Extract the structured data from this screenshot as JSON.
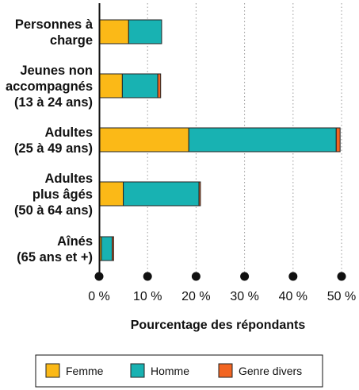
{
  "chart_data": {
    "type": "bar",
    "orientation": "horizontal",
    "stacked": true,
    "categories": [
      [
        "Personnes à",
        "charge"
      ],
      [
        "Jeunes non",
        "accompagnés",
        "(13 à 24 ans)"
      ],
      [
        "Adultes",
        "(25 à 49 ans)"
      ],
      [
        "Adultes",
        "plus âgés",
        "(50 à 64 ans)"
      ],
      [
        "Aînés",
        "(65 ans et +)"
      ]
    ],
    "series": [
      {
        "name": "Femme",
        "color": "#FBB917",
        "values": [
          6.1,
          4.8,
          18.5,
          5.0,
          0.5
        ]
      },
      {
        "name": "Homme",
        "color": "#18B2B2",
        "values": [
          6.8,
          7.3,
          30.4,
          15.6,
          2.2
        ]
      },
      {
        "name": "Genre divers",
        "color": "#F26522",
        "values": [
          0.0,
          0.6,
          0.8,
          0.3,
          0.3
        ]
      }
    ],
    "x_ticks": [
      "0 %",
      "10 %",
      "20 %",
      "30 %",
      "40 %",
      "50 %"
    ],
    "xlim": [
      0,
      50
    ],
    "xlabel": "Pourcentage des répondants",
    "ylabel": "",
    "title": "",
    "grid": "vertical dotted",
    "legend_position": "bottom"
  }
}
